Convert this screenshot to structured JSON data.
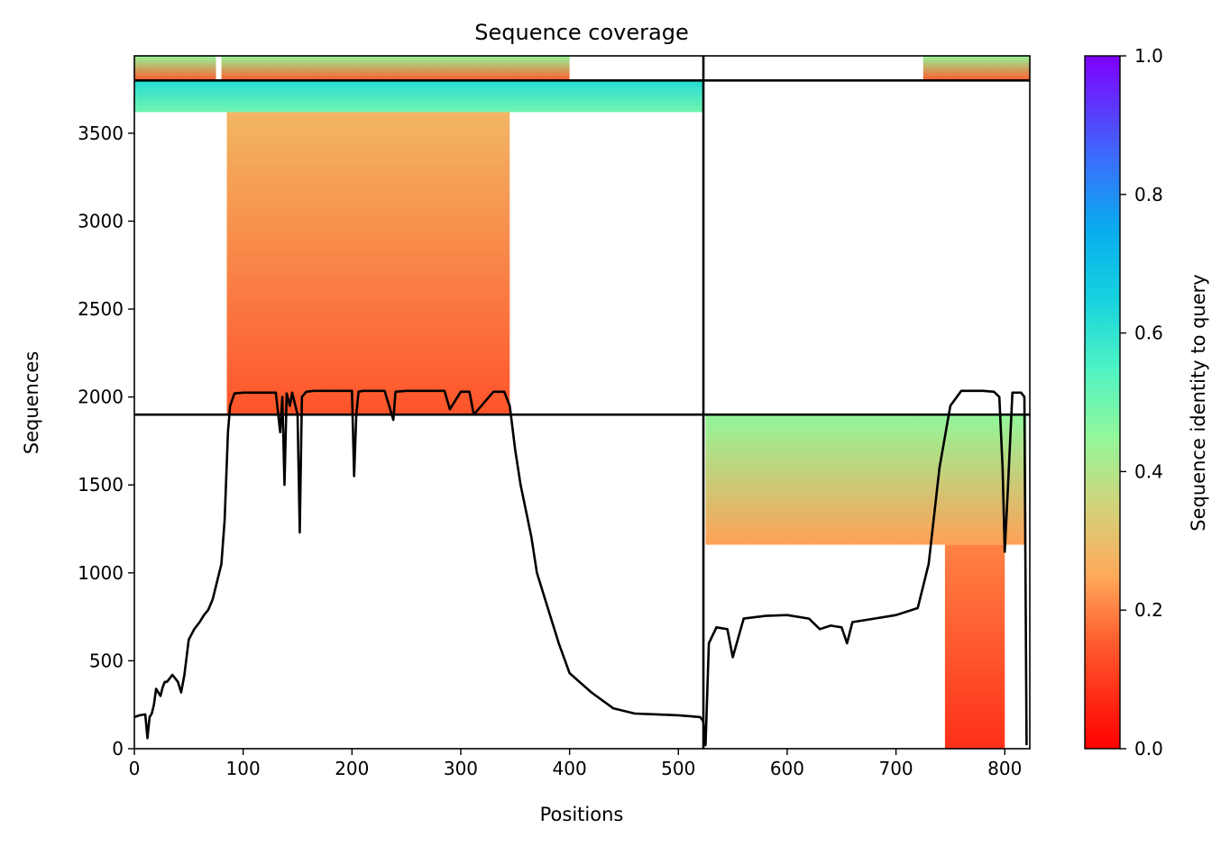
{
  "chart_data": {
    "type": "heatmap",
    "title": "Sequence coverage",
    "xlabel": "Positions",
    "ylabel": "Sequences",
    "xlim": [
      0,
      823
    ],
    "ylim": [
      0,
      3940
    ],
    "xticks": [
      0,
      100,
      200,
      300,
      400,
      500,
      600,
      700,
      800
    ],
    "yticks": [
      0,
      500,
      1000,
      1500,
      2000,
      2500,
      3000,
      3500
    ],
    "colorbar": {
      "label": "Sequence identity to query",
      "range": [
        0,
        1
      ],
      "ticks": [
        "0.0",
        "0.2",
        "0.4",
        "0.6",
        "0.8",
        "1.0"
      ],
      "colormap": "rainbow_r"
    },
    "chain_boundary_x": 523,
    "group_boundaries_y": [
      1900,
      3800
    ],
    "coverage_blocks": [
      {
        "x0": 0,
        "x1": 523,
        "y0": 3800,
        "y1": 3940,
        "identity_top": 0.45,
        "identity_bottom": 0.15,
        "coverage": [
          [
            0,
            75
          ],
          [
            80,
            400
          ]
        ]
      },
      {
        "x0": 523,
        "x1": 823,
        "y0": 3800,
        "y1": 3940,
        "identity_top": 0.45,
        "identity_bottom": 0.15,
        "coverage": [
          [
            725,
            823
          ]
        ]
      },
      {
        "x0": 0,
        "x1": 523,
        "y0": 3620,
        "y1": 3800,
        "identity_top": 0.62,
        "identity_bottom": 0.5,
        "coverage": [
          [
            0,
            523
          ]
        ]
      },
      {
        "x0": 0,
        "x1": 523,
        "y0": 1900,
        "y1": 3620,
        "identity_top": 0.28,
        "identity_bottom": 0.14,
        "coverage": [
          [
            85,
            345
          ]
        ]
      },
      {
        "x0": 523,
        "x1": 823,
        "y0": 1160,
        "y1": 1900,
        "identity_top": 0.45,
        "identity_bottom": 0.24,
        "coverage": [
          [
            525,
            820
          ]
        ]
      },
      {
        "x0": 523,
        "x1": 823,
        "y0": 0,
        "y1": 1160,
        "identity_top": 0.2,
        "identity_bottom": 0.08,
        "coverage": [
          [
            745,
            800
          ]
        ]
      }
    ],
    "series": [
      {
        "type": "line",
        "x": [
          0,
          5,
          10,
          12,
          14,
          16,
          18,
          20,
          24,
          26,
          28,
          30,
          35,
          40,
          43,
          46,
          50,
          55,
          60,
          64,
          68,
          72,
          76,
          80,
          83,
          86,
          88,
          92,
          100,
          110,
          120,
          130,
          134,
          136,
          138,
          140,
          143,
          145,
          150,
          152,
          154,
          158,
          165,
          180,
          200,
          202,
          204,
          206,
          210,
          230,
          238,
          240,
          250,
          280,
          285,
          290,
          300,
          308,
          312,
          330,
          340,
          345,
          350,
          355,
          360,
          365,
          370,
          380,
          390,
          400,
          420,
          440,
          460,
          480,
          500,
          520,
          522,
          523,
          525,
          528,
          535,
          545,
          550,
          560,
          580,
          600,
          620,
          630,
          640,
          650,
          655,
          660,
          680,
          700,
          720,
          730,
          740,
          750,
          760,
          780,
          790,
          795,
          798,
          800,
          803,
          807,
          815,
          818,
          820
        ],
        "y": [
          180,
          190,
          195,
          60,
          180,
          200,
          250,
          340,
          300,
          350,
          380,
          380,
          420,
          380,
          320,
          420,
          620,
          680,
          720,
          760,
          790,
          850,
          950,
          1050,
          1300,
          1800,
          1950,
          2020,
          2025,
          2025,
          2025,
          2025,
          1800,
          2000,
          1500,
          2020,
          1950,
          2025,
          1900,
          1230,
          2000,
          2030,
          2035,
          2035,
          2035,
          1550,
          1900,
          2030,
          2035,
          2035,
          1870,
          2030,
          2035,
          2035,
          2035,
          1930,
          2030,
          2030,
          1900,
          2030,
          2030,
          1950,
          1700,
          1500,
          1350,
          1200,
          1000,
          800,
          600,
          430,
          320,
          230,
          200,
          195,
          190,
          180,
          165,
          150,
          20,
          600,
          690,
          680,
          520,
          740,
          755,
          760,
          740,
          680,
          700,
          690,
          600,
          720,
          740,
          760,
          800,
          1050,
          1600,
          1950,
          2035,
          2035,
          2030,
          2000,
          1600,
          1120,
          1500,
          2025,
          2025,
          2000,
          20
        ]
      }
    ]
  }
}
